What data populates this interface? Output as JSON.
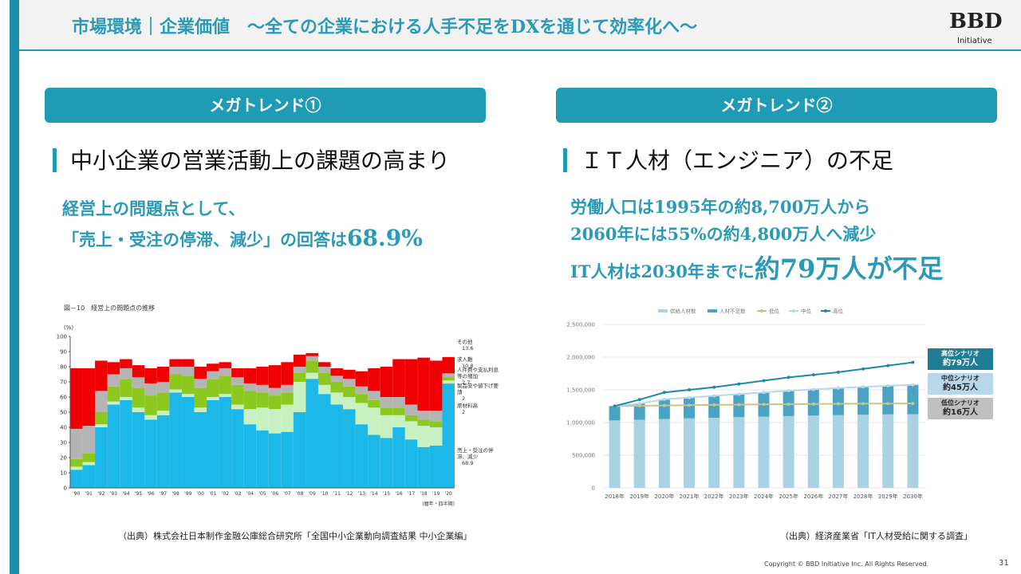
{
  "header": {
    "title": "市場環境｜企業価値　～全ての企業における人手不足をDXを通じて効率化へ～",
    "logo_top": "BBD",
    "logo_bottom": "Initiative"
  },
  "left": {
    "banner": "メガトレンド①",
    "heading": "中小企業の営業活動上の課題の高まり",
    "lead_1": "経営上の問題点として、",
    "lead_2": "「売上・受注の停滞、減少」の回答は",
    "lead_emph": "68.9%",
    "source": "（出典）株式会社日本制作金融公庫総合研究所「全国中小企業動向調査結果 中小企業編」"
  },
  "right": {
    "banner": "メガトレンド②",
    "heading": "ＩＴ人材（エンジニア）の不足",
    "lead_1": "労働人口は1995年の約8,700万人から",
    "lead_2": "2060年には55%の約4,800万人へ減少",
    "lead_3": "IT人材は2030年までに",
    "lead_emph": "約79万人が不足",
    "source": "（出典）経済産業省「IT人材受給に関する調査」",
    "scenarios": [
      {
        "title": "高位シナリオ",
        "value": "約79万人"
      },
      {
        "title": "中位シナリオ",
        "value": "約45万人"
      },
      {
        "title": "低位シナリオ",
        "value": "約16万人"
      }
    ]
  },
  "chart_data": [
    {
      "type": "stacked_bar",
      "title": "図－10　経営上の問題点の推移",
      "y_unit": "(%)",
      "x_label": "(暦年・四半期)",
      "categories": [
        "'90",
        "'91",
        "'92",
        "'93",
        "'94",
        "'95",
        "'96",
        "'97",
        "'98",
        "'99",
        "'00",
        "'01",
        "'02",
        "'03",
        "'04",
        "'05",
        "'06",
        "'07",
        "'08",
        "'09",
        "'10",
        "'11",
        "'12",
        "'13",
        "'14",
        "'15",
        "'16",
        "'17",
        "'18",
        "'19",
        "'20"
      ],
      "ylim": [
        0,
        100
      ],
      "yticks": [
        0,
        10,
        20,
        30,
        40,
        50,
        60,
        70,
        80,
        90,
        100
      ],
      "series": [
        {
          "name": "売上・受注の停滞、減少",
          "color": "#1cb8e8",
          "values": [
            12,
            15,
            40,
            55,
            58,
            50,
            45,
            48,
            63,
            60,
            50,
            58,
            60,
            52,
            42,
            38,
            36,
            37,
            50,
            72,
            62,
            55,
            52,
            42,
            35,
            33,
            40,
            32,
            27,
            28,
            68.9
          ]
        },
        {
          "name": "原材料高",
          "color": "#c9f0c0",
          "values": [
            2,
            2,
            2,
            2,
            2,
            3,
            3,
            3,
            2,
            2,
            3,
            2,
            2,
            3,
            10,
            15,
            16,
            18,
            20,
            4,
            6,
            8,
            8,
            14,
            18,
            15,
            8,
            12,
            14,
            12,
            2
          ]
        },
        {
          "name": "製品安や値下げ要請",
          "color": "#8cc820",
          "values": [
            5,
            6,
            8,
            10,
            12,
            13,
            13,
            12,
            10,
            12,
            13,
            12,
            12,
            13,
            12,
            10,
            9,
            8,
            6,
            8,
            8,
            7,
            7,
            6,
            5,
            5,
            5,
            4,
            4,
            4,
            2
          ]
        },
        {
          "name": "人件費や支払利息等の増加",
          "color": "#b4b4b4",
          "values": [
            20,
            18,
            14,
            8,
            7,
            7,
            8,
            7,
            5,
            6,
            6,
            5,
            5,
            5,
            5,
            5,
            5,
            5,
            4,
            3,
            4,
            4,
            5,
            5,
            6,
            7,
            7,
            7,
            6,
            7,
            2.7
          ]
        },
        {
          "name": "求人難",
          "color": "#f00000",
          "values": [
            40,
            38,
            20,
            8,
            6,
            8,
            10,
            10,
            5,
            5,
            8,
            5,
            4,
            6,
            10,
            12,
            15,
            15,
            8,
            2,
            3,
            5,
            6,
            10,
            15,
            20,
            25,
            30,
            35,
            33,
            10.8
          ]
        }
      ],
      "other": {
        "name": "その他",
        "value": 13.6
      }
    },
    {
      "type": "combo",
      "categories": [
        "2018年",
        "2019年",
        "2020年",
        "2021年",
        "2022年",
        "2023年",
        "2024年",
        "2025年",
        "2026年",
        "2027年",
        "2028年",
        "2029年",
        "2030年"
      ],
      "ylim": [
        0,
        2500000
      ],
      "yticks": [
        {
          "value": 0,
          "label": "0"
        },
        {
          "value": 500000,
          "label": "500,000"
        },
        {
          "value": 1000000,
          "label": "1,000,000"
        },
        {
          "value": 1500000,
          "label": "1,500,000"
        },
        {
          "value": 2000000,
          "label": "2,000,000"
        },
        {
          "value": 2500000,
          "label": "2,500,000"
        }
      ],
      "series": [
        {
          "name": "供給人材数",
          "type": "bar",
          "color": "#a9d3e3",
          "values": [
            1032000,
            1043000,
            1055000,
            1064000,
            1073000,
            1082000,
            1091000,
            1099000,
            1106000,
            1113000,
            1119000,
            1124000,
            1128000
          ]
        },
        {
          "name": "人材不足数",
          "type": "bar",
          "color": "#4ba3c3",
          "values": [
            220000,
            246000,
            300000,
            317000,
            335000,
            353000,
            370000,
            387000,
            401000,
            414000,
            427000,
            438000,
            449000
          ]
        },
        {
          "name": "低位",
          "type": "line",
          "color": "#c9c48a",
          "values": [
            1252000,
            1256000,
            1260000,
            1265000,
            1270000,
            1275000,
            1278000,
            1281000,
            1284000,
            1286000,
            1288000,
            1290000,
            1291000
          ]
        },
        {
          "name": "中位",
          "type": "line",
          "color": "#b7d7ea",
          "values": [
            1252000,
            1289000,
            1355000,
            1381000,
            1408000,
            1435000,
            1461000,
            1486000,
            1507000,
            1527000,
            1546000,
            1562000,
            1577000
          ]
        },
        {
          "name": "高位",
          "type": "line",
          "color": "#1f8aa8",
          "values": [
            1252000,
            1350000,
            1460000,
            1500000,
            1540000,
            1590000,
            1640000,
            1690000,
            1730000,
            1770000,
            1820000,
            1870000,
            1920000
          ]
        }
      ]
    }
  ],
  "footer": {
    "copyright": "Copyright © BBD Initiative Inc. All Rights Reserved.",
    "page": "31"
  }
}
